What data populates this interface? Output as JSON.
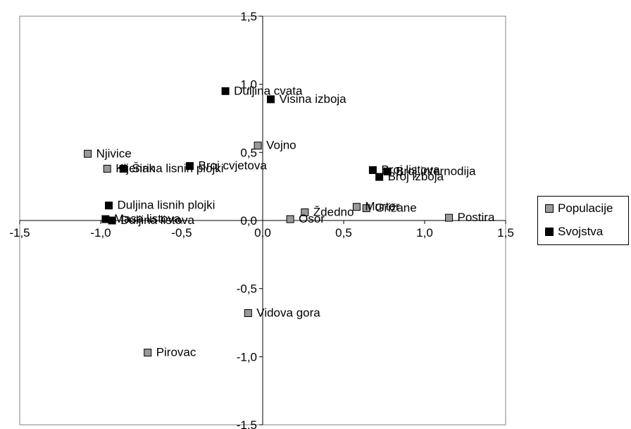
{
  "chart_data": {
    "type": "scatter",
    "title": "",
    "xlabel": "",
    "ylabel": "",
    "xlim": [
      -1.5,
      1.5
    ],
    "ylim": [
      -1.5,
      1.5
    ],
    "x_ticks": [
      "-1,5",
      "-1,0",
      "-0,5",
      "0,0",
      "0,5",
      "1,0",
      "1,5"
    ],
    "y_ticks": [
      "1,5",
      "1,0",
      "0,5",
      "0,0",
      "-0,5",
      "-1,0",
      "-1,5"
    ],
    "grid": false,
    "legend_position": "right",
    "series": [
      {
        "name": "Populacije",
        "color": "#999999",
        "points": [
          {
            "label": "Njivice",
            "x": -1.08,
            "y": 0.49
          },
          {
            "label": "Kljenak",
            "x": -0.96,
            "y": 0.38
          },
          {
            "label": "Vojno",
            "x": -0.03,
            "y": 0.55
          },
          {
            "label": "Murter",
            "x": 0.58,
            "y": 0.1
          },
          {
            "label": "Grižane",
            "x": 0.64,
            "y": 0.09
          },
          {
            "label": "Ždedno",
            "x": 0.26,
            "y": 0.06
          },
          {
            "label": "Osor",
            "x": 0.17,
            "y": 0.01
          },
          {
            "label": "Postira",
            "x": 1.15,
            "y": 0.02
          },
          {
            "label": "Vidova gora",
            "x": -0.09,
            "y": -0.68
          },
          {
            "label": "Pirovac",
            "x": -0.71,
            "y": -0.97
          }
        ]
      },
      {
        "name": "Svojstva",
        "color": "#000000",
        "points": [
          {
            "label": "Duljina cvata",
            "x": -0.23,
            "y": 0.95
          },
          {
            "label": "Visina izboja",
            "x": 0.05,
            "y": 0.89
          },
          {
            "label": "Širina lisnih plojki",
            "x": -0.86,
            "y": 0.38
          },
          {
            "label": "Broj cvjetova",
            "x": -0.45,
            "y": 0.4
          },
          {
            "label": "Broj listova",
            "x": 0.68,
            "y": 0.37
          },
          {
            "label": "Broj internodija",
            "x": 0.77,
            "y": 0.36
          },
          {
            "label": "Broj izboja",
            "x": 0.72,
            "y": 0.32
          },
          {
            "label": "Duljina lisnih plojki",
            "x": -0.95,
            "y": 0.11
          },
          {
            "label": "Masa listova",
            "x": -0.97,
            "y": 0.01
          },
          {
            "label": "Duljina listova",
            "x": -0.93,
            "y": 0.0
          }
        ]
      }
    ]
  }
}
